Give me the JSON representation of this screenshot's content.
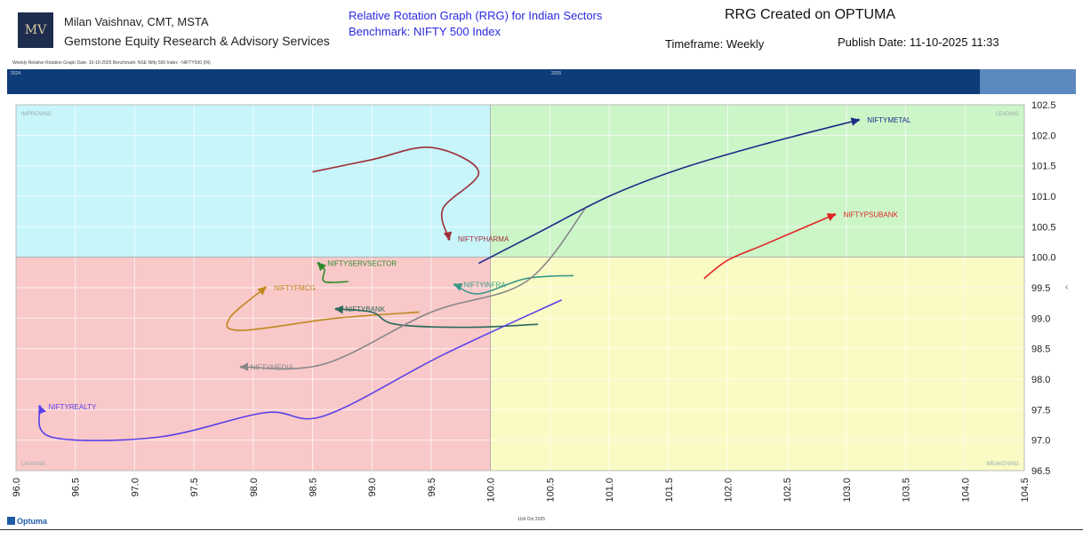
{
  "header": {
    "author": "Milan Vaishnav, CMT, MSTA",
    "firm": "Gemstone Equity Research & Advisory Services",
    "rrg_title": "Relative Rotation Graph (RRG) for Indian Sectors",
    "benchmark": "Benchmark: NIFTY 500 Index",
    "created": "RRG Created on OPTUMA",
    "timeframe": "Timeframe: Weekly",
    "publish": "Publish Date: 11-10-2025 11:33"
  },
  "subheader": "Weekly Relative Rotation Graph    Date: 10-10-2025  Benchmark: NSE Nifty 500 Index - NIFTY500 (IN)",
  "scrubber": {
    "start_label": "2024",
    "mid_label": "2025"
  },
  "footer": {
    "date": "11th Oct 2025",
    "brand": "Optuma"
  },
  "colors": {
    "leading": "#ccf5c8",
    "weakening": "#fafac4",
    "lagging": "#f9c8c8",
    "improving": "#c7f5fa",
    "scrubber": "#0e3c78"
  },
  "chart_data": {
    "type": "scatter",
    "xlim": [
      96.0,
      104.5
    ],
    "ylim": [
      96.5,
      102.5
    ],
    "x_ticks": [
      "96.0",
      "96.5",
      "97.0",
      "97.5",
      "98.0",
      "98.5",
      "99.0",
      "99.5",
      "100.0",
      "100.5",
      "101.0",
      "101.5",
      "102.0",
      "102.5",
      "103.0",
      "103.5",
      "104.0",
      "104.5"
    ],
    "y_ticks": [
      "96.5",
      "97.0",
      "97.5",
      "98.0",
      "98.5",
      "99.0",
      "99.5",
      "100.0",
      "100.5",
      "101.0",
      "101.5",
      "102.0",
      "102.5"
    ],
    "grid": true,
    "quadrants": {
      "top_left": "IMPROVING",
      "top_right": "LEADING",
      "bottom_left": "LAGGING",
      "bottom_right": "WEAKENING"
    },
    "series": [
      {
        "name": "NIFTYMETAL",
        "color": "#1c2a86",
        "points": [
          [
            99.9,
            99.9
          ],
          [
            100.4,
            100.4
          ],
          [
            101.0,
            101.0
          ],
          [
            101.6,
            101.45
          ],
          [
            102.3,
            101.85
          ],
          [
            103.1,
            102.25
          ]
        ]
      },
      {
        "name": "NIFTYPSUBANK",
        "color": "#e02424",
        "points": [
          [
            101.8,
            99.65
          ],
          [
            102.0,
            99.95
          ],
          [
            102.3,
            100.2
          ],
          [
            102.6,
            100.45
          ],
          [
            102.9,
            100.7
          ]
        ]
      },
      {
        "name": "NIFTYPHARMA",
        "color": "#9e2e36",
        "points": [
          [
            98.5,
            101.4
          ],
          [
            99.0,
            101.6
          ],
          [
            99.5,
            101.8
          ],
          [
            99.9,
            101.4
          ],
          [
            99.6,
            100.8
          ],
          [
            99.65,
            100.3
          ]
        ]
      },
      {
        "name": "NIFTYSERVSECTOR",
        "color": "#2d8a2d",
        "points": [
          [
            98.8,
            99.6
          ],
          [
            98.6,
            99.6
          ],
          [
            98.6,
            99.8
          ],
          [
            98.55,
            99.9
          ]
        ]
      },
      {
        "name": "NIFTYINFRA",
        "color": "#3a9a8a",
        "points": [
          [
            100.7,
            99.7
          ],
          [
            100.3,
            99.65
          ],
          [
            99.9,
            99.4
          ],
          [
            99.7,
            99.55
          ]
        ]
      },
      {
        "name": "NIFTYFMCG",
        "color": "#c08820",
        "points": [
          [
            99.4,
            99.1
          ],
          [
            98.7,
            99.0
          ],
          [
            97.9,
            98.8
          ],
          [
            97.8,
            99.0
          ],
          [
            98.1,
            99.5
          ]
        ]
      },
      {
        "name": "NIFTYBANK",
        "color": "#2a6a5a",
        "points": [
          [
            100.4,
            98.9
          ],
          [
            99.8,
            98.85
          ],
          [
            99.2,
            98.9
          ],
          [
            99.0,
            99.1
          ],
          [
            98.7,
            99.15
          ]
        ]
      },
      {
        "name": "NIFTYMEDIA",
        "color": "#888888",
        "points": [
          [
            100.8,
            100.8
          ],
          [
            100.3,
            99.6
          ],
          [
            99.5,
            99.1
          ],
          [
            98.6,
            98.25
          ],
          [
            97.9,
            98.2
          ]
        ]
      },
      {
        "name": "NIFTYREALTY",
        "color": "#5a40e8",
        "points": [
          [
            100.6,
            99.3
          ],
          [
            99.6,
            98.4
          ],
          [
            98.6,
            97.4
          ],
          [
            98.1,
            97.45
          ],
          [
            97.2,
            97.05
          ],
          [
            96.3,
            97.05
          ],
          [
            96.2,
            97.55
          ]
        ]
      }
    ]
  }
}
